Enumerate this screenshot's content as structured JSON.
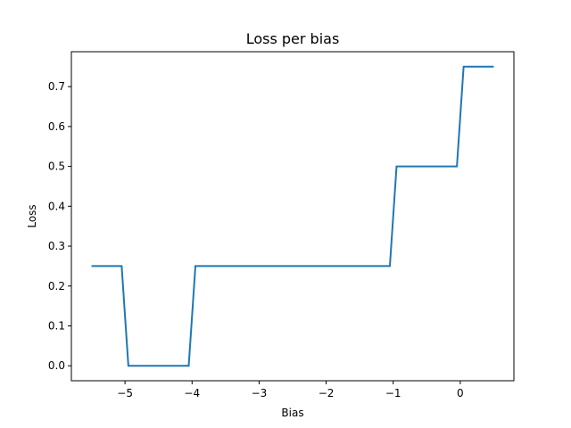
{
  "chart_data": {
    "type": "line",
    "title": "Loss per bias",
    "xlabel": "Bias",
    "ylabel": "Loss",
    "xlim": [
      -5.8,
      0.8
    ],
    "ylim": [
      -0.0375,
      0.7875
    ],
    "xticks": [
      -5,
      -4,
      -3,
      -2,
      -1,
      0
    ],
    "xtick_labels": [
      "−5",
      "−4",
      "−3",
      "−2",
      "−1",
      "0"
    ],
    "yticks": [
      0.0,
      0.1,
      0.2,
      0.3,
      0.4,
      0.5,
      0.6,
      0.7
    ],
    "ytick_labels": [
      "0.0",
      "0.1",
      "0.2",
      "0.3",
      "0.4",
      "0.5",
      "0.6",
      "0.7"
    ],
    "grid": false,
    "series": [
      {
        "color": "#1f77b4",
        "x": [
          -5.5,
          -5.05,
          -4.95,
          -4.05,
          -3.95,
          -1.05,
          -0.95,
          -0.05,
          0.05,
          0.5
        ],
        "y": [
          0.25,
          0.25,
          0.0,
          0.0,
          0.25,
          0.25,
          0.5,
          0.5,
          0.75,
          0.75
        ]
      }
    ]
  }
}
